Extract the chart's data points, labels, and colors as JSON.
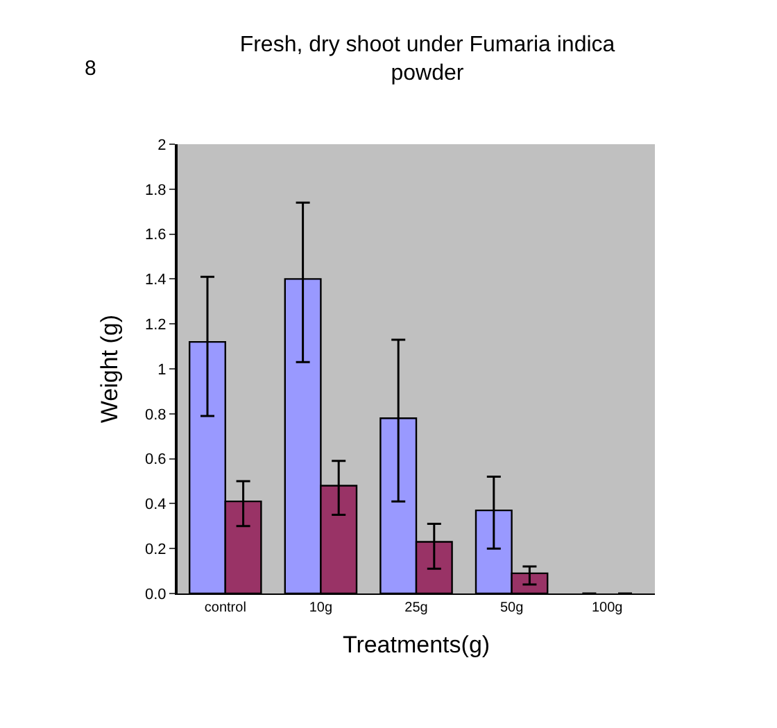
{
  "chart_data": {
    "type": "bar",
    "title": "Fresh, dry shoot under Fumaria indica\npowder",
    "annotations": [
      "8"
    ],
    "xlabel": "Treatments(g)",
    "ylabel": "Weight (g)",
    "categories": [
      "control",
      "10g",
      "25g",
      "50g",
      "100g"
    ],
    "series": [
      {
        "color": "#9999ff",
        "values": [
          1.12,
          1.4,
          0.78,
          0.37,
          0
        ],
        "errors": [
          [
            0.79,
            1.41
          ],
          [
            1.03,
            1.74
          ],
          [
            0.41,
            1.13
          ],
          [
            0.2,
            0.52
          ],
          null
        ]
      },
      {
        "color": "#993366",
        "values": [
          0.41,
          0.48,
          0.23,
          0.09,
          0
        ],
        "errors": [
          [
            0.3,
            0.5
          ],
          [
            0.35,
            0.59
          ],
          [
            0.11,
            0.31
          ],
          [
            0.04,
            0.12
          ],
          null
        ]
      }
    ],
    "ylim": [
      0,
      2
    ],
    "yticks": [
      {
        "value": 0,
        "label": "0.0"
      },
      0.2,
      0.4,
      0.6,
      0.8,
      1,
      1.2,
      1.4,
      1.6,
      1.8,
      2
    ],
    "grid": false
  }
}
